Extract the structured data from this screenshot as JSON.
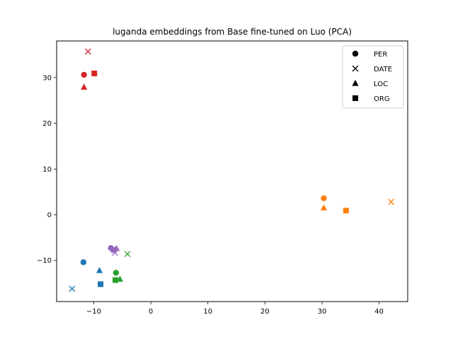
{
  "chart_data": {
    "type": "scatter",
    "title": "luganda embeddings from Base fine-tuned on Luo (PCA)",
    "xlabel": "",
    "ylabel": "",
    "xlim": [
      -16.5,
      45
    ],
    "ylim": [
      -19,
      38
    ],
    "x_ticks": [
      -10,
      0,
      10,
      20,
      30,
      40
    ],
    "y_ticks": [
      -10,
      0,
      10,
      20,
      30
    ],
    "grid": false,
    "legend_position": "top-right",
    "legend": [
      {
        "label": "PER",
        "marker": "circle"
      },
      {
        "label": "DATE",
        "marker": "x"
      },
      {
        "label": "LOC",
        "marker": "triangle"
      },
      {
        "label": "ORG",
        "marker": "square"
      }
    ],
    "groups": [
      {
        "color": "#1f77b4",
        "points": [
          {
            "entity": "PER",
            "x": -11.8,
            "y": -10.4
          },
          {
            "entity": "DATE",
            "x": -13.8,
            "y": -16.2
          },
          {
            "entity": "LOC",
            "x": -9.0,
            "y": -12.2
          },
          {
            "entity": "ORG",
            "x": -8.8,
            "y": -15.2
          }
        ]
      },
      {
        "color": "#ff7f0e",
        "points": [
          {
            "entity": "PER",
            "x": 30.3,
            "y": 3.6
          },
          {
            "entity": "DATE",
            "x": 42.1,
            "y": 2.8
          },
          {
            "entity": "LOC",
            "x": 30.3,
            "y": 1.5
          },
          {
            "entity": "ORG",
            "x": 34.2,
            "y": 0.9
          }
        ]
      },
      {
        "color": "#2ca02c",
        "points": [
          {
            "entity": "PER",
            "x": -6.1,
            "y": -12.7
          },
          {
            "entity": "DATE",
            "x": -4.1,
            "y": -8.6
          },
          {
            "entity": "LOC",
            "x": -5.4,
            "y": -14.1
          },
          {
            "entity": "ORG",
            "x": -6.2,
            "y": -14.3
          }
        ]
      },
      {
        "color": "#d62728",
        "points": [
          {
            "entity": "PER",
            "x": -11.7,
            "y": 30.6
          },
          {
            "entity": "DATE",
            "x": -11.0,
            "y": 35.7
          },
          {
            "entity": "LOC",
            "x": -11.7,
            "y": 27.9
          },
          {
            "entity": "ORG",
            "x": -9.9,
            "y": 30.9
          }
        ]
      },
      {
        "color": "#9467bd",
        "points": [
          {
            "entity": "PER",
            "x": -7.0,
            "y": -7.3
          },
          {
            "entity": "DATE",
            "x": -6.3,
            "y": -8.3
          },
          {
            "entity": "LOC",
            "x": -6.0,
            "y": -7.4
          },
          {
            "entity": "ORG",
            "x": -6.5,
            "y": -7.7
          }
        ]
      }
    ]
  }
}
